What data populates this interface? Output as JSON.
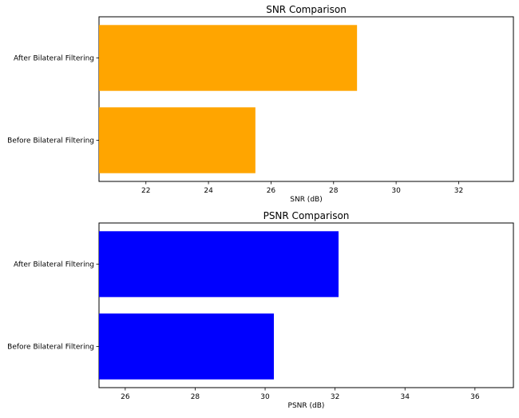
{
  "chart_data": [
    {
      "type": "bar",
      "orientation": "horizontal",
      "title": "SNR Comparison",
      "xlabel": "SNR (dB)",
      "ylabel": "",
      "categories": [
        "Before Bilateral Filtering",
        "After Bilateral Filtering"
      ],
      "values": [
        25.5,
        28.75
      ],
      "xlim": [
        20.5,
        33.75
      ],
      "xticks": [
        22,
        24,
        26,
        28,
        30,
        32
      ],
      "xtick_labels": [
        "22",
        "24",
        "26",
        "28",
        "30",
        "32"
      ],
      "bar_color": "#ffa500",
      "grid": false
    },
    {
      "type": "bar",
      "orientation": "horizontal",
      "title": "PSNR Comparison",
      "xlabel": "PSNR (dB)",
      "ylabel": "",
      "categories": [
        "Before Bilateral Filtering",
        "After Bilateral Filtering"
      ],
      "values": [
        30.25,
        32.1
      ],
      "xlim": [
        25.25,
        37.1
      ],
      "xticks": [
        26,
        28,
        30,
        32,
        34,
        36
      ],
      "xtick_labels": [
        "26",
        "28",
        "30",
        "32",
        "34",
        "36"
      ],
      "bar_color": "#0000ff",
      "grid": false
    }
  ]
}
